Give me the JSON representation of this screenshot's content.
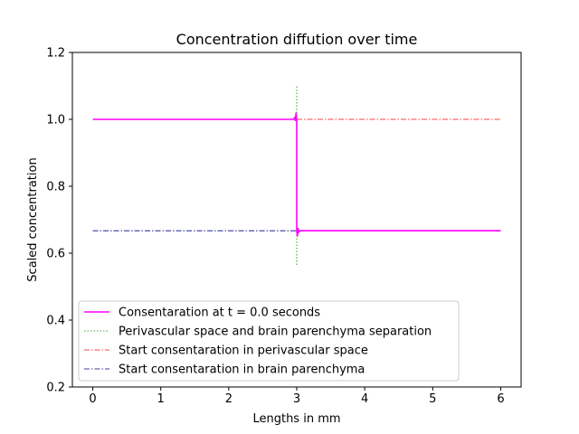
{
  "chart_data": {
    "type": "line",
    "title": "Concentration diffution over time",
    "xlabel": "Lengths in mm",
    "ylabel": "Scaled concentration",
    "xlim": [
      -0.3,
      6.3
    ],
    "ylim": [
      0.2,
      1.2
    ],
    "xticks": [
      "0",
      "1",
      "2",
      "3",
      "4",
      "5",
      "6"
    ],
    "yticks": [
      "0.2",
      "0.4",
      "0.6",
      "0.8",
      "1.0",
      "1.2"
    ],
    "grid": false,
    "legend_position": "lower-left",
    "series": [
      {
        "name": "Consentaration at t = 0.0 seconds",
        "style": "solid",
        "color": "#ff00ff",
        "x": [
          0,
          2.95,
          2.97,
          2.98,
          2.99,
          3.0,
          3.0,
          3.01,
          3.02,
          3.03,
          3.05,
          6
        ],
        "y": [
          1.0,
          1.0,
          1.005,
          0.995,
          1.02,
          0.995,
          0.667,
          0.65,
          0.675,
          0.663,
          0.667,
          0.667
        ]
      },
      {
        "name": "Perivascular space and brain parenchyma separation",
        "style": "dotted",
        "color": "#008000",
        "x": [
          3,
          3
        ],
        "y": [
          0.565,
          1.1
        ]
      },
      {
        "name": "Start consentaration in perivascular space",
        "style": "dashdot",
        "color": "#ff0000",
        "x": [
          3,
          6
        ],
        "y": [
          1.0,
          1.0
        ]
      },
      {
        "name": "Start consentaration in brain parenchyma",
        "style": "dashdot",
        "color": "#000080",
        "x": [
          0,
          3
        ],
        "y": [
          0.667,
          0.667
        ]
      }
    ]
  }
}
